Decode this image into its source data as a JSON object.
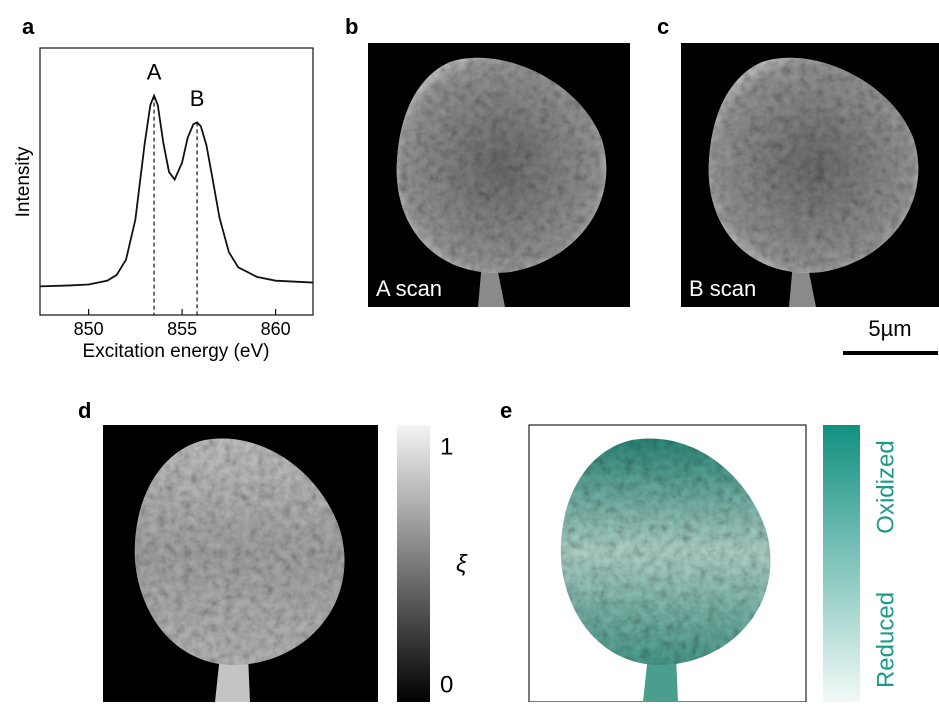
{
  "panel_labels": [
    "a",
    "b",
    "c",
    "d",
    "e"
  ],
  "chart_data": {
    "type": "line",
    "xlabel": "Excitation energy (eV)",
    "ylabel": "Intensity",
    "x": [
      847.4,
      849,
      850,
      851,
      851.5,
      852,
      852.5,
      853,
      853.3,
      853.5,
      853.7,
      854,
      854.3,
      854.6,
      855,
      855.3,
      855.6,
      855.8,
      856,
      856.3,
      856.6,
      857,
      857.5,
      858,
      859,
      860,
      862.0
    ],
    "series": [
      {
        "color": "#111111",
        "values": [
          0,
          0.005,
          0.01,
          0.03,
          0.06,
          0.14,
          0.35,
          0.75,
          0.95,
          1.0,
          0.95,
          0.75,
          0.6,
          0.56,
          0.65,
          0.78,
          0.85,
          0.86,
          0.84,
          0.74,
          0.58,
          0.36,
          0.18,
          0.1,
          0.05,
          0.03,
          0.02
        ]
      }
    ],
    "xlim": [
      847.4,
      862.0
    ],
    "xticks": [
      850,
      855,
      860
    ],
    "ylim": [
      -0.15,
      1.25
    ],
    "annotations": [
      {
        "label": "A",
        "x": 853.5
      },
      {
        "label": "B",
        "x": 855.8
      }
    ]
  },
  "images": {
    "b": {
      "label": "A scan"
    },
    "c": {
      "label": "B scan"
    },
    "scale_bar": "5µm"
  },
  "colorbar_d": {
    "top": "1",
    "bottom": "0",
    "label": "ξ"
  },
  "colorbar_e": {
    "top": "Oxidized",
    "bottom": "Reduced"
  }
}
